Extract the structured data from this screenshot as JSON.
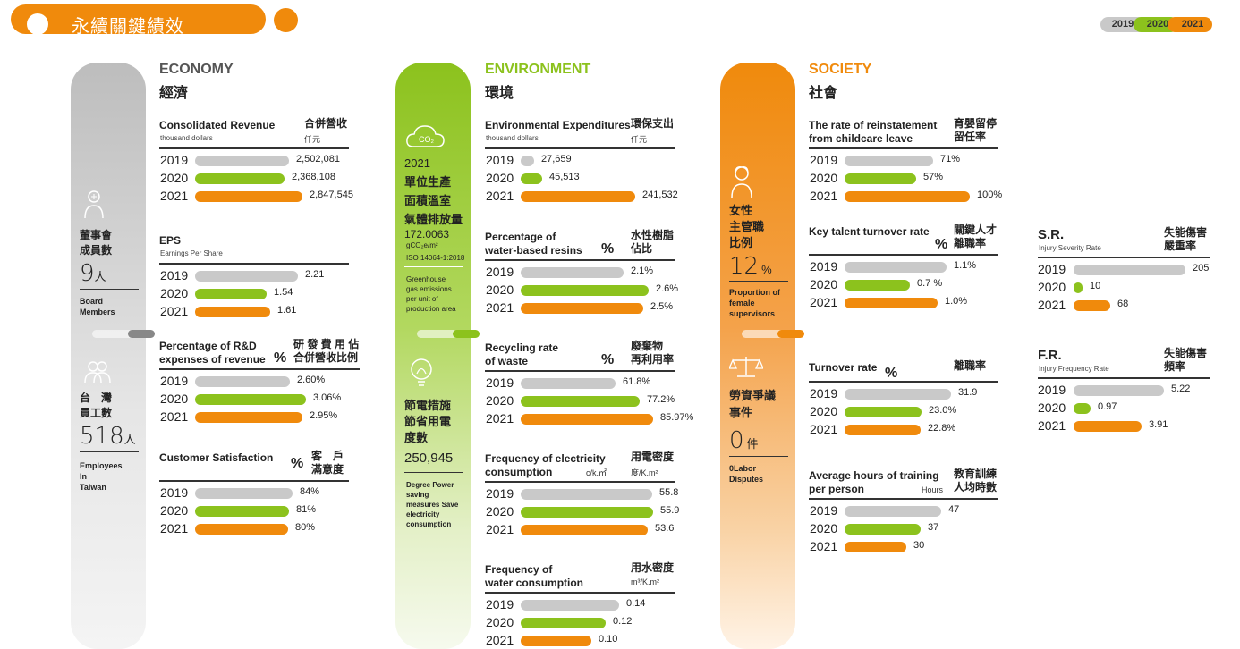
{
  "header": {
    "title": "永續關鍵績效"
  },
  "legend": {
    "items": [
      "2019",
      "2020",
      "2021"
    ]
  },
  "colors": {
    "y2019": "#c9c9c9",
    "y2020": "#8cc21d",
    "y2021": "#f08a0c"
  },
  "years": [
    "2019",
    "2020",
    "2021"
  ],
  "economy": {
    "en": "ECONOMY",
    "zh": "經濟",
    "pillar": {
      "zh1": "董事會",
      "zh2": "成員數",
      "num": "9",
      "unit": "人",
      "en1": "Board",
      "en2": "Members",
      "zh3": "台　灣",
      "zh4": "員工數",
      "num2": "518",
      "unit2": "人",
      "en3": "Employees",
      "en4": "In",
      "en5": "Taiwan"
    },
    "metrics": [
      {
        "en1": "Consolidated Revenue",
        "sub": "thousand dollars",
        "zh1": "合併營收",
        "unit": "仟元",
        "values": [
          2502081,
          2368108,
          2847545
        ],
        "labels": [
          "2,502,081",
          "2,368,108",
          "2,847,545"
        ]
      },
      {
        "en1": "EPS",
        "sub": "Earnings Per Share",
        "values": [
          2.21,
          1.54,
          1.61
        ],
        "labels": [
          "2.21",
          "1.54",
          "1.61"
        ]
      },
      {
        "en1": "Percentage of R&D",
        "en2": "expenses of revenue",
        "pct": "%",
        "zh1": "研 發 費 用 佔",
        "zh2": "合併營收比例",
        "values": [
          2.6,
          3.06,
          2.95
        ],
        "labels": [
          "2.60%",
          "3.06%",
          "2.95%"
        ]
      },
      {
        "en1": "Customer Satisfaction",
        "pct": "%",
        "zh1": "客　戶",
        "zh2": "滿意度",
        "values": [
          84,
          81,
          80
        ],
        "labels": [
          "84%",
          "81%",
          "80%"
        ]
      }
    ]
  },
  "environment": {
    "en": "ENVIRONMENT",
    "zh": "環境",
    "pillar": {
      "co2": "CO₂",
      "yr": "2021",
      "zh1": "單位生產",
      "zh2": "面積溫室",
      "zh3": "氣體排放量",
      "num": "172.0063",
      "unit": "gCO₂e/m²",
      "iso": "ISO 14064-1:2018",
      "en1": "Greenhouse",
      "en2": "gas emissions",
      "en3": "per unit of",
      "en4": "production area",
      "zh4": "節電措施",
      "zh5": "節省用電",
      "zh6": "度數",
      "num2": "250,945",
      "en5": "Degree Power",
      "en6": "saving",
      "en7": "measures Save",
      "en8": "electricity",
      "en9": "consumption"
    },
    "metrics": [
      {
        "en1": "Environmental Expenditures",
        "sub": "thousand dollars",
        "zh1": "環保支出",
        "unit": "仟元",
        "values": [
          27659,
          45513,
          241532
        ],
        "labels": [
          "27,659",
          "45,513",
          "241,532"
        ]
      },
      {
        "en1": "Percentage of",
        "en2": "water-based resins",
        "pct": "%",
        "zh1": "水性樹脂",
        "zh2": "佔比",
        "values": [
          2.1,
          2.6,
          2.5
        ],
        "labels": [
          "2.1%",
          "2.6%",
          "2.5%"
        ]
      },
      {
        "en1": "Recycling rate",
        "en2": "of waste",
        "pct": "%",
        "zh1": "廢棄物",
        "zh2": "再利用率",
        "values": [
          61.8,
          77.2,
          85.97
        ],
        "labels": [
          "61.8%",
          "77.2%",
          "85.97%"
        ]
      },
      {
        "en1": "Frequency of electricity",
        "en2": "consumption",
        "unit": "度/K.m²",
        "unit2": "c/k.㎡",
        "zh1": "用電密度",
        "values": [
          55.8,
          55.9,
          53.6
        ],
        "labels": [
          "55.8",
          "55.9",
          "53.6"
        ]
      },
      {
        "en1": "Frequency of",
        "en2": "water consumption",
        "unit": "m³/K.m²",
        "zh1": "用水密度",
        "values": [
          0.14,
          0.12,
          0.1
        ],
        "labels": [
          "0.14",
          "0.12",
          "0.10"
        ]
      }
    ]
  },
  "society": {
    "en": "SOCIETY",
    "zh": "社會",
    "pillar": {
      "zh1": "女性",
      "zh2": "主管職",
      "zh3": "比例",
      "num": "12",
      "unit": "%",
      "en1": "Proportion of",
      "en2": "female",
      "en3": "supervisors",
      "zh4": "勞資爭議",
      "zh5": "事件",
      "num2": "0",
      "unit2": "件",
      "en4": "0Labor",
      "en5": "Disputes"
    },
    "metrics": [
      {
        "en1": "The rate of reinstatement",
        "en2": "from childcare leave",
        "zh1": "育嬰留停",
        "zh2": "留任率",
        "values": [
          71,
          57,
          100
        ],
        "labels": [
          "71%",
          "57%",
          "100%"
        ]
      },
      {
        "en1": "Key talent turnover rate",
        "pct": "%",
        "zh1": "關鍵人才",
        "zh2": "離職率",
        "values": [
          1.1,
          0.7,
          1.0
        ],
        "labels": [
          "1.1%",
          "0.7  %",
          "1.0%"
        ]
      },
      {
        "en1": "Turnover rate",
        "pct": "%",
        "zh1": "離職率",
        "values": [
          31.9,
          23.0,
          22.8
        ],
        "labels": [
          "31.9",
          "23.0%",
          "22.8%"
        ]
      },
      {
        "en1": "Average hours of training",
        "en2": "per person",
        "unit": "Hours",
        "zh1": "教育訓練",
        "zh2": "人均時數",
        "values": [
          47,
          37,
          30
        ],
        "labels": [
          "47",
          "37",
          "30"
        ]
      },
      {
        "en1": "S.R.",
        "sub": "Injury Severity Rate",
        "zh1": "失能傷害",
        "zh2": "嚴重率",
        "values": [
          205,
          10,
          68
        ],
        "labels": [
          "205",
          "10",
          "68"
        ]
      },
      {
        "en1": "F.R.",
        "sub": "Injury Frequency Rate",
        "zh1": "失能傷害",
        "zh2": "頻率",
        "values": [
          5.22,
          0.97,
          3.91
        ],
        "labels": [
          "5.22",
          "0.97",
          "3.91"
        ]
      }
    ]
  }
}
